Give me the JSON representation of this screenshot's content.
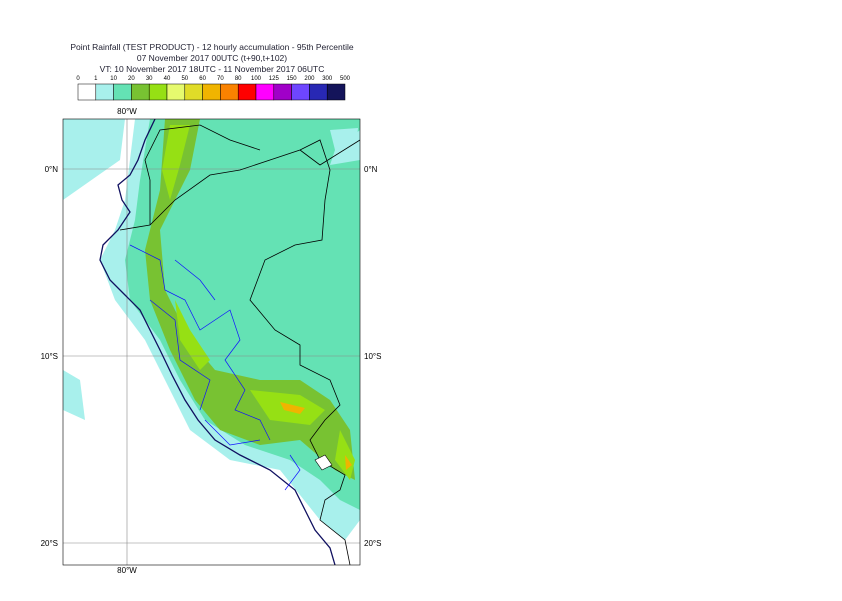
{
  "title": [
    "Point Rainfall (TEST PRODUCT) - 12 hourly accumulation - 95th Percentile",
    "07 November 2017 00UTC (t+90,t+102)",
    "VT: 10 November 2017 18UTC - 11 November 2017 06UTC"
  ],
  "legend": {
    "labels": [
      "0",
      "1",
      "10",
      "20",
      "30",
      "40",
      "50",
      "60",
      "70",
      "80",
      "100",
      "125",
      "150",
      "200",
      "300",
      "500"
    ],
    "colors": [
      "#ffffff",
      "#a8f0ec",
      "#64e2b4",
      "#78c232",
      "#96e014",
      "#e6fa6e",
      "#e0dc28",
      "#f0b400",
      "#fa8200",
      "#ff0000",
      "#ff00ff",
      "#a000c8",
      "#6e46ff",
      "#2828b4",
      "#14145a"
    ]
  },
  "map": {
    "lon_labels": [
      "80°W"
    ],
    "lat_labels": [
      "0°N",
      "10°S",
      "20°S"
    ]
  }
}
